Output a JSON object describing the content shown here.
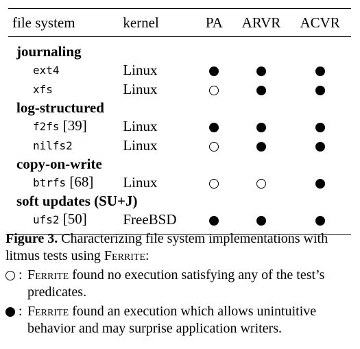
{
  "table": {
    "headers": {
      "file_system": "file system",
      "kernel": "kernel",
      "pa": "PA",
      "arvr": "ARVR",
      "acvr": "ACVR"
    },
    "groups": [
      {
        "label": "journaling",
        "rows": [
          {
            "name": "ext4",
            "cite": "",
            "kernel": "Linux",
            "pa": "filled",
            "arvr": "filled",
            "acvr": "filled"
          },
          {
            "name": "xfs",
            "cite": "",
            "kernel": "Linux",
            "pa": "empty",
            "arvr": "filled",
            "acvr": "filled"
          }
        ]
      },
      {
        "label": "log-structured",
        "rows": [
          {
            "name": "f2fs",
            "cite": "[39]",
            "kernel": "Linux",
            "pa": "filled",
            "arvr": "filled",
            "acvr": "filled"
          },
          {
            "name": "nilfs2",
            "cite": "",
            "kernel": "Linux",
            "pa": "empty",
            "arvr": "filled",
            "acvr": "filled"
          }
        ]
      },
      {
        "label": "copy-on-write",
        "rows": [
          {
            "name": "btrfs",
            "cite": "[68]",
            "kernel": "Linux",
            "pa": "empty",
            "arvr": "empty",
            "acvr": "filled"
          }
        ]
      },
      {
        "label": "soft updates (SU+J)",
        "rows": [
          {
            "name": "ufs2",
            "cite": "[50]",
            "kernel": "FreeBSD",
            "pa": "filled",
            "arvr": "filled",
            "acvr": "filled"
          }
        ]
      }
    ]
  },
  "caption": {
    "label": "Figure 3.",
    "text_1": "Characterizing file system implementations with litmus tests using ",
    "ferrite": "Ferrite",
    "text_2": ":",
    "legend": [
      {
        "symbol": "empty",
        "colon": ":",
        "ferrite": "Ferrite",
        "text": " found no execution satisfying any of the test’s predicates."
      },
      {
        "symbol": "filled",
        "colon": ":",
        "ferrite": "Ferrite",
        "text": " found an execution which allows unintuitive behavior and may surprise application writers."
      }
    ]
  }
}
